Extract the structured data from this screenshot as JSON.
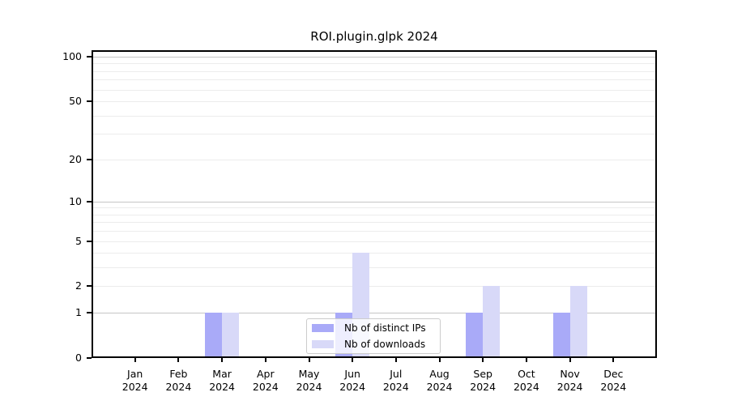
{
  "chart_data": {
    "type": "bar",
    "title": "ROI.plugin.glpk 2024",
    "categories": [
      "Jan",
      "Feb",
      "Mar",
      "Apr",
      "May",
      "Jun",
      "Jul",
      "Aug",
      "Sep",
      "Oct",
      "Nov",
      "Dec"
    ],
    "category_year": "2024",
    "series": [
      {
        "name": "Nb of distinct IPs",
        "color": "#a9aaf8",
        "values": [
          0,
          0,
          1,
          0,
          0,
          1,
          0,
          0,
          1,
          0,
          1,
          0
        ]
      },
      {
        "name": "Nb of downloads",
        "color": "#d8d9f8",
        "values": [
          0,
          0,
          1,
          0,
          0,
          4,
          0,
          0,
          2,
          0,
          2,
          0
        ]
      }
    ],
    "yscale": "log1p",
    "ylim": [
      0,
      100
    ],
    "y_tick_values": [
      0,
      1,
      2,
      5,
      10,
      20,
      50,
      100
    ],
    "y_major_gridlines": [
      1,
      10,
      100
    ],
    "y_minor_gridlines": [
      2,
      3,
      4,
      5,
      6,
      7,
      8,
      9,
      20,
      30,
      40,
      50,
      60,
      70,
      80,
      90
    ],
    "grid": true,
    "legend_position": "lower center",
    "colors": {
      "major_grid": "#c6c6c6",
      "minor_grid": "#ececec",
      "axis": "#000000",
      "legend_border": "#cccccc",
      "background": "#ffffff",
      "text": "#000000"
    }
  }
}
